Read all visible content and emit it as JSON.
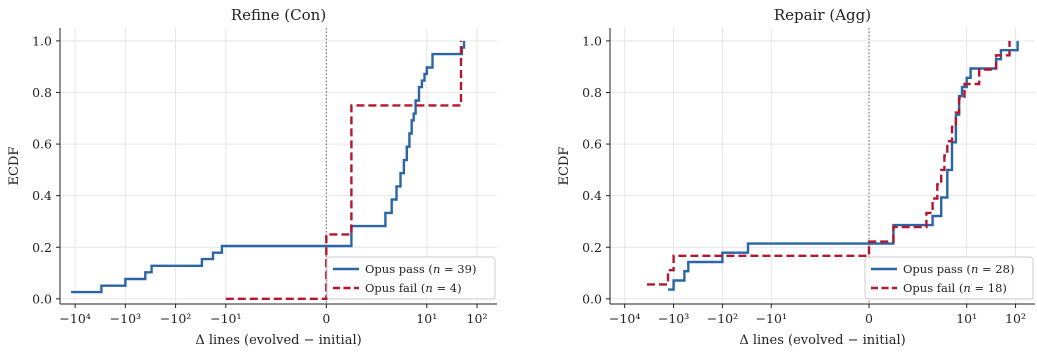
{
  "chart_data": [
    {
      "type": "line",
      "title": "Refine (Con)",
      "xlabel": "Δ lines (evolved − initial)",
      "ylabel": "ECDF",
      "xscale": "symlog",
      "xlim": [
        -20000,
        250
      ],
      "ylim": [
        -0.02,
        1.05
      ],
      "grid": true,
      "legend_position": "lower-right",
      "reference_line_x": 0,
      "xticks": [
        {
          "value": -10000,
          "label": "−10⁴"
        },
        {
          "value": -1000,
          "label": "−10³"
        },
        {
          "value": -100,
          "label": "−10²"
        },
        {
          "value": -10,
          "label": "−10¹"
        },
        {
          "value": 0,
          "label": "0"
        },
        {
          "value": 10,
          "label": "10¹"
        },
        {
          "value": 100,
          "label": "10²"
        }
      ],
      "yticks": [
        {
          "value": 0.0,
          "label": "0.0"
        },
        {
          "value": 0.2,
          "label": "0.2"
        },
        {
          "value": 0.4,
          "label": "0.4"
        },
        {
          "value": 0.6,
          "label": "0.6"
        },
        {
          "value": 0.8,
          "label": "0.8"
        },
        {
          "value": 1.0,
          "label": "1.0"
        }
      ],
      "series": [
        {
          "name": "Opus pass (n = 39)",
          "legend_label": "Opus pass",
          "n": 39,
          "color": "#2a65a8",
          "dash": "solid",
          "steps": [
            [
              -12000,
              0.026
            ],
            [
              -3000,
              0.051
            ],
            [
              -1000,
              0.077
            ],
            [
              -400,
              0.103
            ],
            [
              -300,
              0.128
            ],
            [
              -30,
              0.154
            ],
            [
              -18,
              0.179
            ],
            [
              -12,
              0.205
            ],
            [
              0.5,
              0.282
            ],
            [
              1.5,
              0.333
            ],
            [
              2,
              0.385
            ],
            [
              2.5,
              0.436
            ],
            [
              3,
              0.487
            ],
            [
              3.5,
              0.538
            ],
            [
              4,
              0.59
            ],
            [
              4.5,
              0.641
            ],
            [
              5,
              0.692
            ],
            [
              5.5,
              0.718
            ],
            [
              6,
              0.769
            ],
            [
              7,
              0.821
            ],
            [
              8,
              0.846
            ],
            [
              9,
              0.872
            ],
            [
              10,
              0.897
            ],
            [
              13,
              0.949
            ],
            [
              50,
              0.974
            ],
            [
              55,
              1.0
            ]
          ],
          "x_end": 55
        },
        {
          "name": "Opus fail (n = 4)",
          "legend_label": "Opus fail",
          "n": 4,
          "color": "#b5162f",
          "dash": "dashed",
          "steps": [
            [
              -10,
              0.0
            ],
            [
              0,
              0.25
            ],
            [
              0.5,
              0.75
            ],
            [
              48,
              1.0
            ]
          ],
          "x_end": 48
        }
      ]
    },
    {
      "type": "line",
      "title": "Repair (Agg)",
      "xlabel": "Δ lines (evolved − initial)",
      "ylabel": "ECDF",
      "xscale": "symlog",
      "xlim": [
        -20000,
        250
      ],
      "ylim": [
        -0.02,
        1.05
      ],
      "grid": true,
      "legend_position": "lower-right",
      "reference_line_x": 0,
      "xticks": [
        {
          "value": -10000,
          "label": "−10⁴"
        },
        {
          "value": -1000,
          "label": "−10³"
        },
        {
          "value": -100,
          "label": "−10²"
        },
        {
          "value": -10,
          "label": "−10¹"
        },
        {
          "value": 0,
          "label": "0"
        },
        {
          "value": 10,
          "label": "10¹"
        },
        {
          "value": 100,
          "label": "10²"
        }
      ],
      "yticks": [
        {
          "value": 0.0,
          "label": "0.0"
        },
        {
          "value": 0.2,
          "label": "0.2"
        },
        {
          "value": 0.4,
          "label": "0.4"
        },
        {
          "value": 0.6,
          "label": "0.6"
        },
        {
          "value": 0.8,
          "label": "0.8"
        },
        {
          "value": 1.0,
          "label": "1.0"
        }
      ],
      "series": [
        {
          "name": "Opus pass (n = 28)",
          "legend_label": "Opus pass",
          "n": 28,
          "color": "#2a65a8",
          "dash": "solid",
          "steps": [
            [
              -1300,
              0.036
            ],
            [
              -1000,
              0.071
            ],
            [
              -600,
              0.107
            ],
            [
              -500,
              0.143
            ],
            [
              -100,
              0.179
            ],
            [
              -30,
              0.214
            ],
            [
              -8,
              0.214
            ],
            [
              0.5,
              0.286
            ],
            [
              2,
              0.321
            ],
            [
              3,
              0.393
            ],
            [
              4,
              0.5
            ],
            [
              5,
              0.607
            ],
            [
              6,
              0.714
            ],
            [
              7,
              0.786
            ],
            [
              8,
              0.821
            ],
            [
              10,
              0.857
            ],
            [
              12,
              0.893
            ],
            [
              40,
              0.929
            ],
            [
              50,
              0.964
            ],
            [
              110,
              1.0
            ]
          ],
          "x_end": 110
        },
        {
          "name": "Opus fail (n = 18)",
          "legend_label": "Opus fail",
          "n": 18,
          "color": "#b5162f",
          "dash": "dashed",
          "steps": [
            [
              -3500,
              0.056
            ],
            [
              -1300,
              0.111
            ],
            [
              -1000,
              0.167
            ],
            [
              -10,
              0.167
            ],
            [
              0,
              0.222
            ],
            [
              0.5,
              0.278
            ],
            [
              1.5,
              0.333
            ],
            [
              2,
              0.389
            ],
            [
              2.5,
              0.444
            ],
            [
              3,
              0.5
            ],
            [
              3.5,
              0.556
            ],
            [
              4,
              0.611
            ],
            [
              5,
              0.667
            ],
            [
              6,
              0.722
            ],
            [
              7,
              0.778
            ],
            [
              9,
              0.833
            ],
            [
              18,
              0.889
            ],
            [
              40,
              0.944
            ],
            [
              75,
              1.0
            ]
          ],
          "x_end": 75
        }
      ]
    }
  ]
}
